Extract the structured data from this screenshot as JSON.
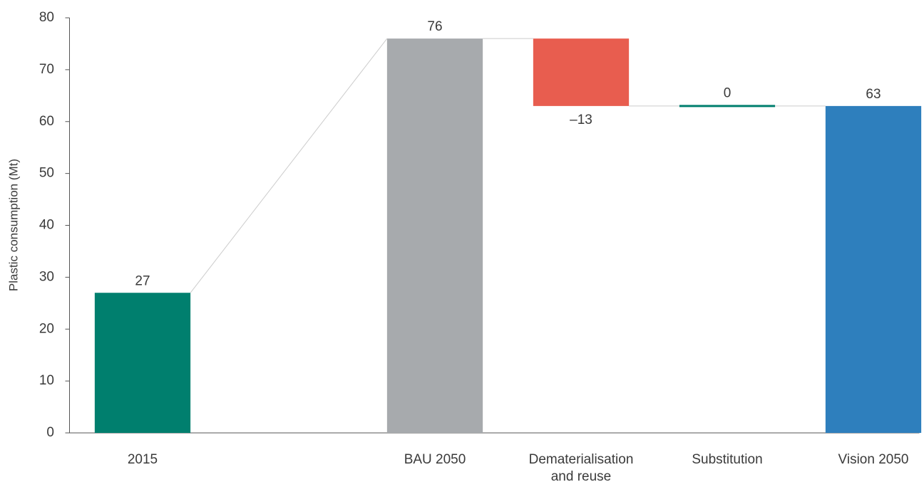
{
  "chart_data": {
    "type": "waterfall",
    "y_label": "Plastic consumption (Mt)",
    "categories": [
      "2015",
      null,
      "BAU 2050",
      "Dematerialisation and reuse",
      "Substitution",
      "Vision 2050"
    ],
    "values": [
      27,
      null,
      76,
      -13,
      0,
      63
    ],
    "value_labels": [
      "27",
      null,
      "76",
      "–13",
      "0",
      "63"
    ],
    "measure": [
      "absolute",
      null,
      "absolute",
      "relative",
      "relative",
      "absolute"
    ],
    "colors": [
      "#007f6e",
      null,
      "#a7aaad",
      "#e85d4f",
      "#007f6e",
      "#2e7fbd"
    ],
    "connector_color": "#cccccc",
    "ylim": [
      0,
      80
    ],
    "yticks": [
      0,
      10,
      20,
      30,
      40,
      50,
      60,
      70,
      80
    ],
    "grid": false
  }
}
